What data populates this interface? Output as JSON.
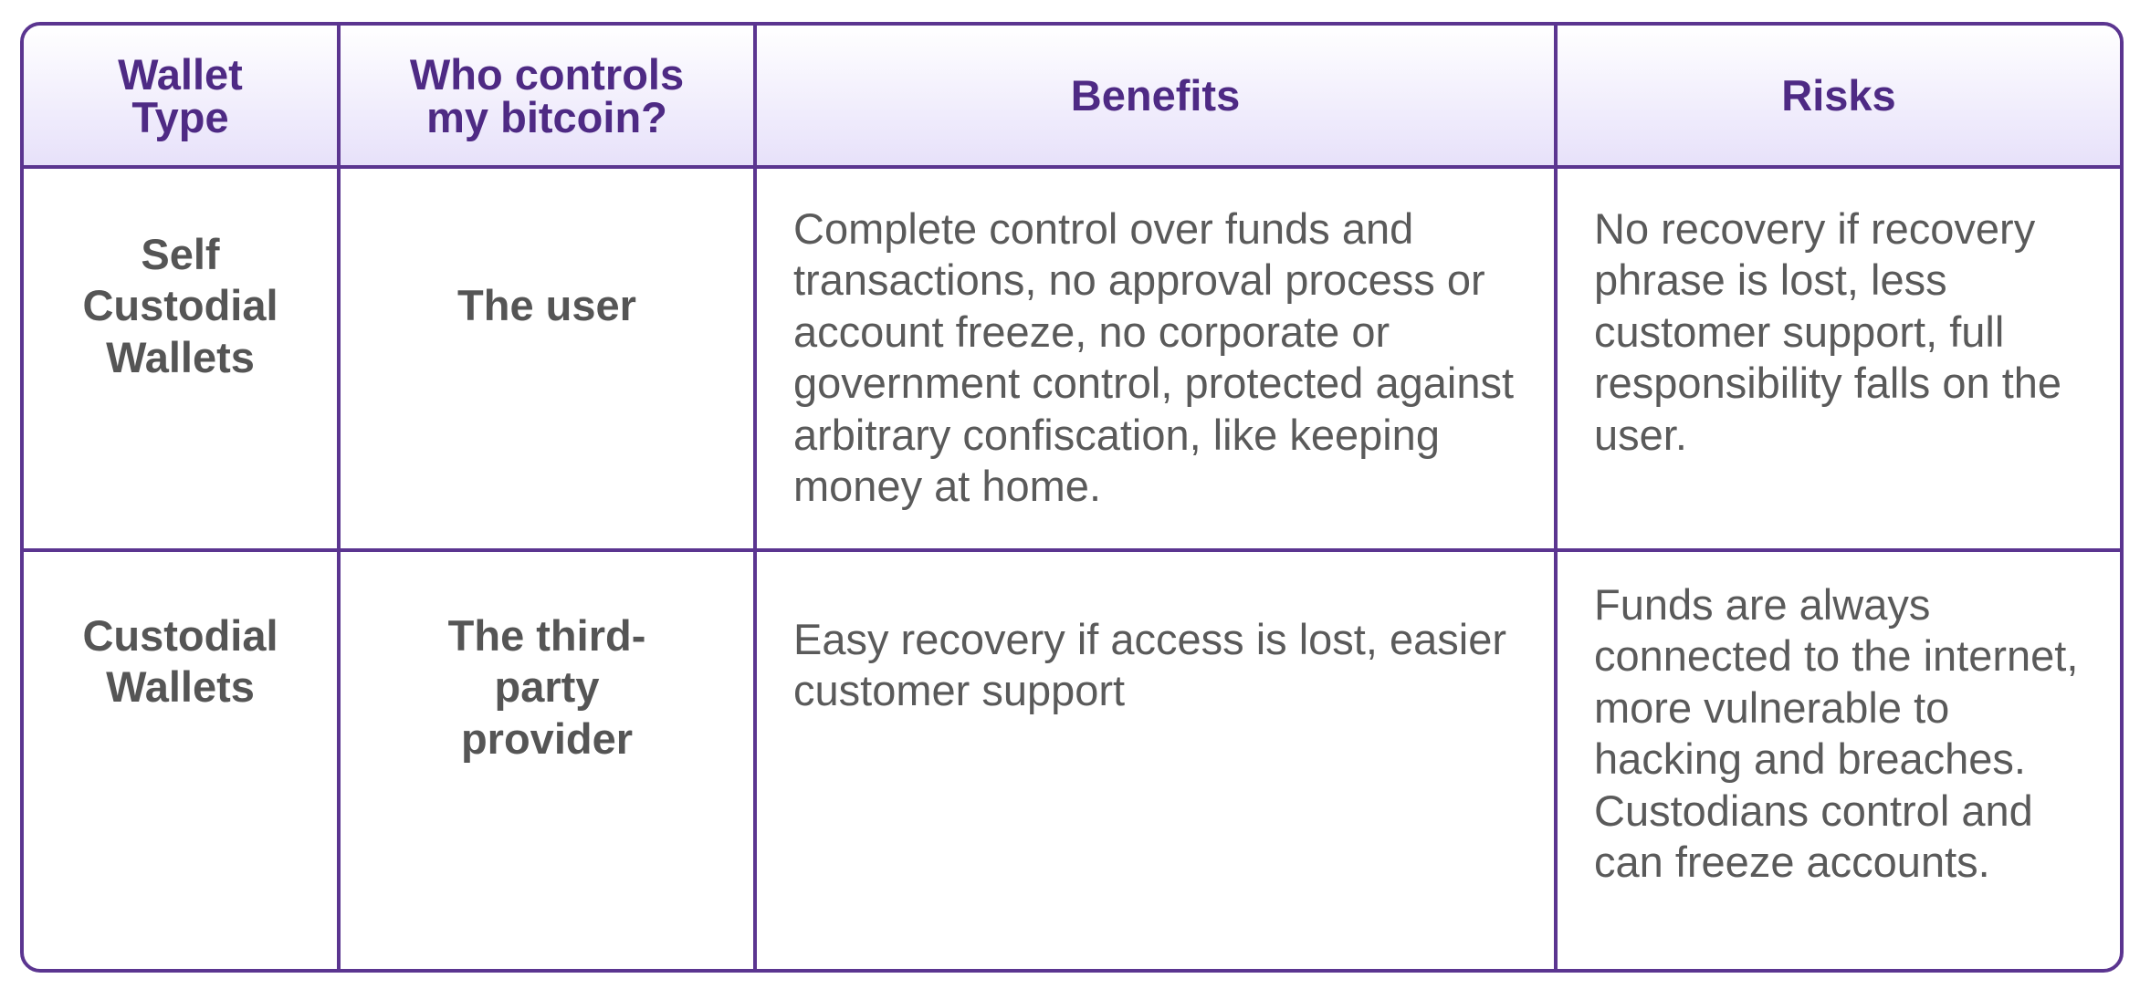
{
  "table": {
    "headers": {
      "wallet_type": "Wallet Type",
      "who_controls": "Who controls my bitcoin?",
      "benefits": "Benefits",
      "risks": "Risks"
    },
    "rows": [
      {
        "wallet_type": "Self Custodial Wallets",
        "who_controls": "The user",
        "benefits": "Complete control over funds and transactions, no approval process or account freeze, no corporate or government control, protected against arbitrary confiscation, like keeping money at home.",
        "risks": "No recovery if recovery phrase is lost, less customer support, full responsibility falls on the user."
      },
      {
        "wallet_type": "Custodial Wallets",
        "who_controls": "The third-party provider",
        "benefits": "Easy recovery if access is lost, easier customer support",
        "risks": "Funds are always connected to the internet, more vulnerable to hacking and breaches. Custodians control and can freeze accounts."
      }
    ]
  },
  "colors": {
    "border": "#5b3590",
    "header_text": "#4e2a84",
    "body_text": "#5a5a5a",
    "header_gradient_bottom": "#e7e1fa"
  }
}
